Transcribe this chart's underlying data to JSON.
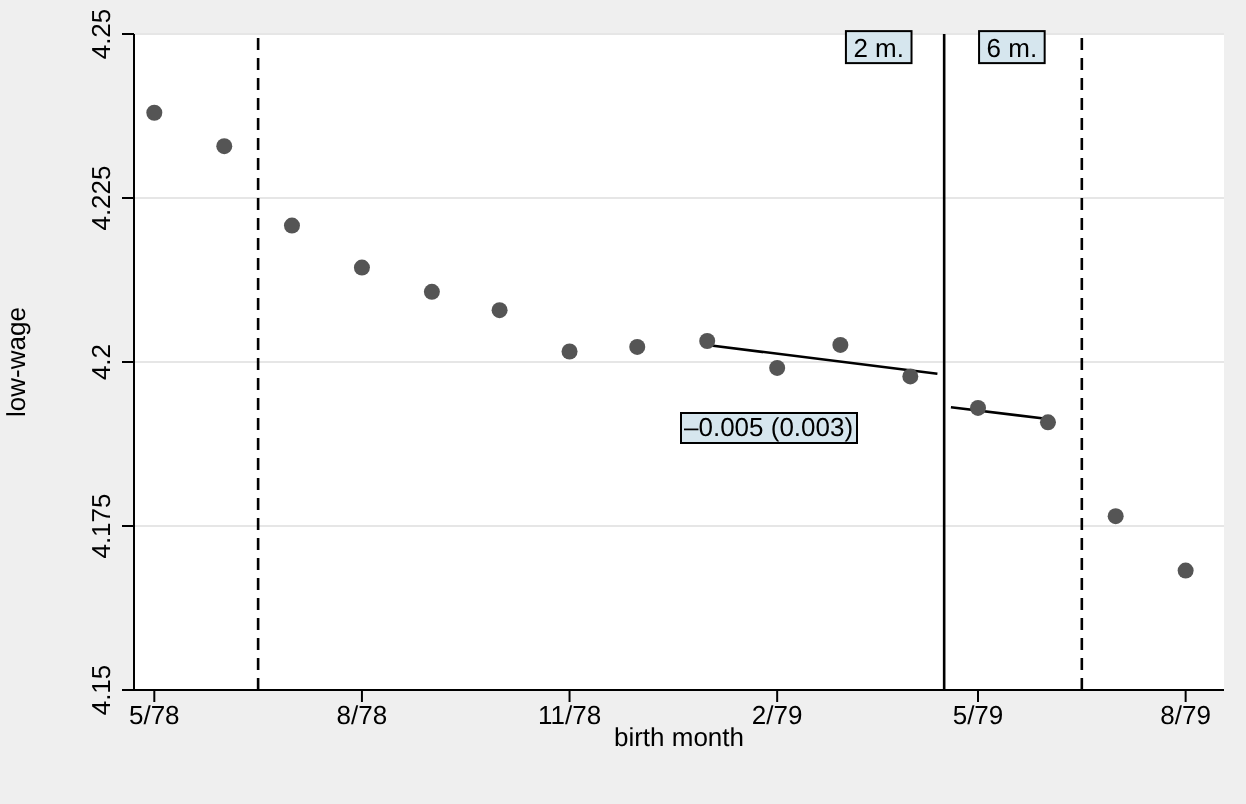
{
  "chart_data": {
    "type": "scatter",
    "xlabel": "birth month",
    "ylabel": "low-wage",
    "xlim": [
      "1978-04-22",
      "1979-08-18"
    ],
    "xticks": [
      {
        "value": "1978-05",
        "label": "5/78"
      },
      {
        "value": "1978-08",
        "label": "8/78"
      },
      {
        "value": "1978-11",
        "label": "11/78"
      },
      {
        "value": "1979-02",
        "label": "2/79"
      },
      {
        "value": "1979-05",
        "label": "5/79"
      },
      {
        "value": "1979-08",
        "label": "8/79"
      }
    ],
    "ylim": [
      4.15,
      4.25
    ],
    "yticks": [
      4.15,
      4.175,
      4.2,
      4.225,
      4.25
    ],
    "grid": "y",
    "series": [
      {
        "color": "#555555",
        "marker": "circle",
        "x": [
          "1978-05",
          "1978-06",
          "1978-07",
          "1978-08",
          "1978-09",
          "1978-10",
          "1978-11",
          "1978-12",
          "1979-01",
          "1979-02",
          "1979-03",
          "1979-04",
          "1979-05",
          "1979-06",
          "1979-07",
          "1979-08"
        ],
        "values": [
          4.238,
          4.2329,
          4.2208,
          4.2144,
          4.2107,
          4.2079,
          4.2016,
          4.2023,
          4.2032,
          4.1991,
          4.2026,
          4.1978,
          4.193,
          4.1908,
          4.1765,
          4.1682
        ]
      },
      {
        "type": "line",
        "color": "#000000",
        "x": [
          "1979-01",
          "1979-04-13"
        ],
        "values": [
          4.2026,
          4.1982
        ]
      },
      {
        "type": "line",
        "color": "#000000",
        "x": [
          "1979-04-19",
          "1979-06"
        ],
        "values": [
          4.1931,
          4.1913
        ]
      }
    ],
    "ref_lines": [
      {
        "axis": "x",
        "value": "1978-06-16",
        "line_style": "dashed",
        "color": "#000000"
      },
      {
        "axis": "x",
        "value": "1979-04-16",
        "line_style": "solid",
        "color": "#000000"
      },
      {
        "axis": "x",
        "value": "1979-06-16",
        "line_style": "dashed",
        "color": "#000000"
      }
    ],
    "annotations": [
      {
        "text": "2 m.",
        "x": "1979-03-18",
        "y": 4.248
      },
      {
        "text": "6 m.",
        "x": "1979-05-16",
        "y": 4.248
      },
      "–0.005 (0.003)"
    ]
  }
}
